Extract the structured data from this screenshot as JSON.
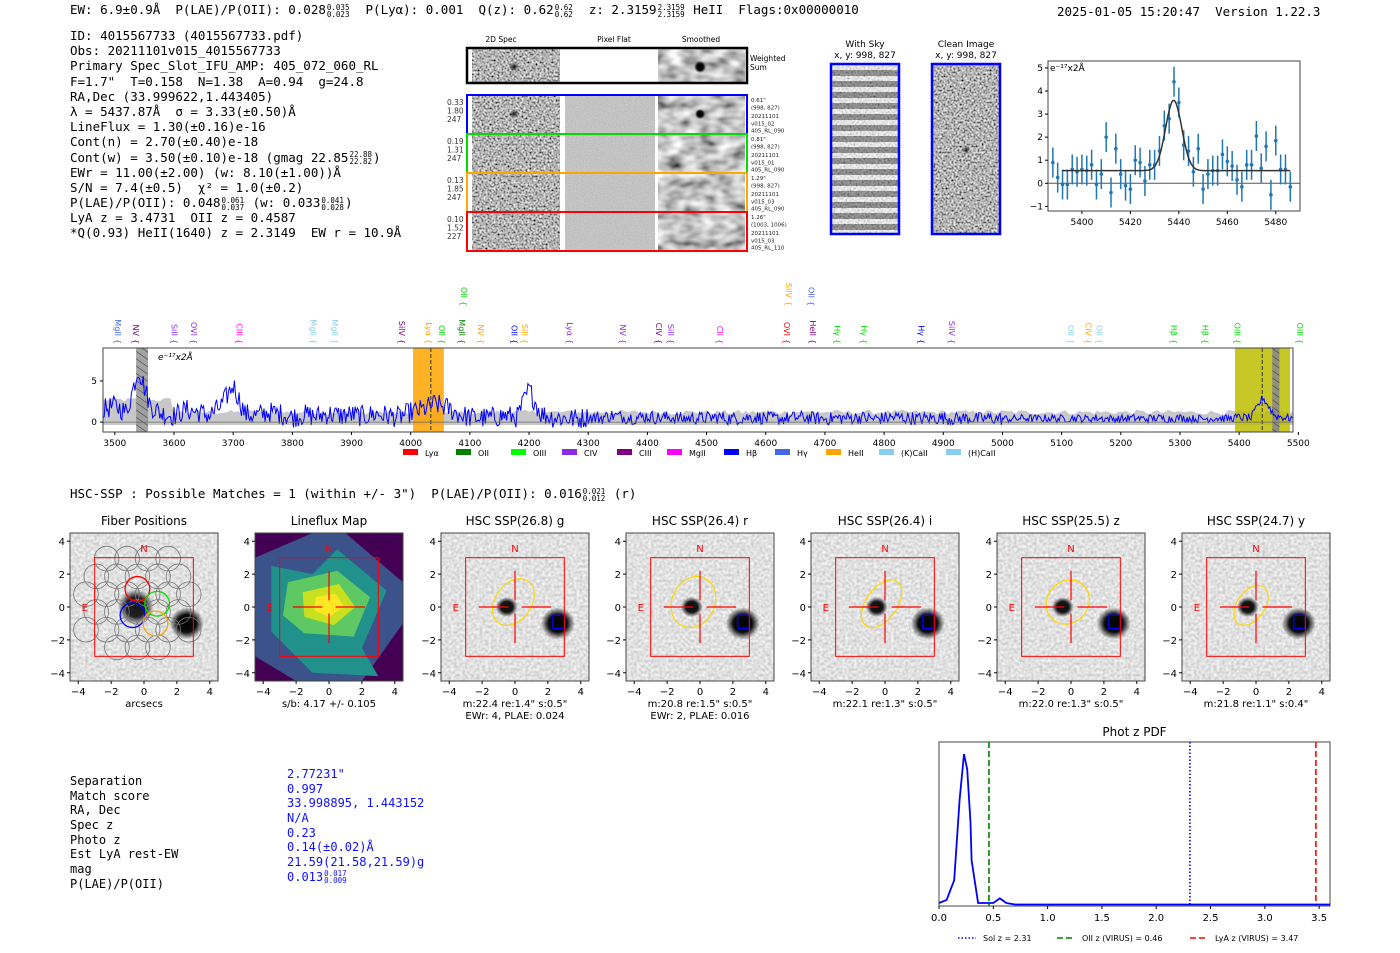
{
  "header": {
    "ew": "EW: 6.9±0.9Å",
    "plae": "P(LAE)/P(OII): 0.028",
    "plae_hi": "0.035",
    "plae_lo": "0.023",
    "plya": "P(Lyα): 0.001",
    "qz": "Q(z): 0.62",
    "qz_hi": "0.62",
    "qz_lo": "0.62",
    "z": "z: 2.3159",
    "z_hi": "2.3159",
    "z_lo": "2.3159",
    "z_line": "HeII",
    "flags": "Flags:0x00000010",
    "timestamp": "2025-01-05 15:20:47",
    "version": "Version 1.22.3"
  },
  "info": {
    "id": "ID: 4015567733 (4015567733.pdf)",
    "obs": "Obs: 20211101v015_4015567733",
    "primary": "Primary Spec_Slot_IFU_AMP: 405_072_060_RL",
    "params": "F=1.7\"  T=0.158  N=1.38  A=0.94  g=24.8",
    "radec": "RA,Dec (33.999622,1.443405)",
    "lambda": "λ = 5437.87Å  σ = 3.33(±0.50)Å",
    "lineflux": "LineFlux = 1.30(±0.16)e-16",
    "cont_n": "Cont(n) = 2.70(±0.40)e-18",
    "cont_w": "Cont(w) = 3.50(±0.10)e-18 (gmag 22.85",
    "cont_w_hi": "22.88",
    "cont_w_lo": "22.82",
    "cont_w_end": ")",
    "ewr": "EWr = 11.00(±2.00) (w: 8.10(±1.00))Å",
    "sn": "S/N = 7.4(±0.5)  χ² = 1.0(±0.2)",
    "plae": "P(LAE)/P(OII): 0.048",
    "plae_hi": "0.061",
    "plae_lo": "0.037",
    "plae_w": "(w: 0.033",
    "plae_w_hi": "0.041",
    "plae_w_lo": "0.028",
    "plae_w_end": ")",
    "lya_z": "LyA z = 3.4731  OII z = 0.4587",
    "heii": "*Q(0.93) HeII(1640) z = 2.3149  EW r = 10.9Å"
  },
  "cutouts": {
    "col_headers": [
      "2D Spec",
      "Pixel Flat",
      "Smoothed"
    ],
    "weighted_sum": [
      "Weighted",
      "Sum"
    ],
    "rows": [
      {
        "color": "#0000ff",
        "left": [
          "0.33",
          "1.80",
          "247"
        ],
        "right": [
          "0.61\"",
          "(998, 827)",
          "20211101",
          "v015_02",
          "405_RL_090"
        ]
      },
      {
        "color": "#00dd00",
        "left": [
          "0.19",
          "1.31",
          "247"
        ],
        "right": [
          "0.81\"",
          "(998, 827)",
          "20211101",
          "v015_01",
          "405_RL_090"
        ]
      },
      {
        "color": "#ffa500",
        "left": [
          "0.13",
          "1.85",
          "247"
        ],
        "right": [
          "1.29\"",
          "(998, 827)",
          "20211101",
          "v015_03",
          "405_RL_090"
        ]
      },
      {
        "color": "#ff0000",
        "left": [
          "0.10",
          "1.52",
          "227"
        ],
        "right": [
          "1.26\"",
          "(1003, 1006)",
          "20211101",
          "v015_03",
          "405_RL_110"
        ]
      }
    ],
    "with_sky": [
      "With Sky",
      "x, y: 998, 827"
    ],
    "clean": [
      "Clean Image",
      "x, y: 998, 827"
    ]
  },
  "chart_data": [
    {
      "type": "scatter",
      "name": "line-fit",
      "ylabel": "e⁻¹⁷x2Å",
      "xlim": [
        5386,
        5490
      ],
      "ylim": [
        -1.2,
        5.3
      ],
      "xticks": [
        5400,
        5420,
        5440,
        5460,
        5480
      ],
      "yticks": [
        -1,
        0,
        1,
        2,
        3,
        4,
        5
      ],
      "x": [
        5388,
        5390,
        5392,
        5394,
        5396,
        5398,
        5400,
        5402,
        5404,
        5406,
        5408,
        5410,
        5412,
        5414,
        5416,
        5418,
        5420,
        5422,
        5424,
        5426,
        5428,
        5430,
        5432,
        5434,
        5436,
        5438,
        5440,
        5442,
        5444,
        5446,
        5448,
        5450,
        5452,
        5454,
        5456,
        5458,
        5460,
        5462,
        5464,
        5466,
        5468,
        5470,
        5472,
        5474,
        5476,
        5478,
        5480,
        5482,
        5484,
        5486
      ],
      "y": [
        0.9,
        0.25,
        -0.05,
        -0.05,
        0.6,
        0.5,
        0.6,
        0.55,
        0.8,
        -0.05,
        0.4,
        2.0,
        -0.4,
        1.5,
        0.4,
        -0.1,
        -0.25,
        1.0,
        0.9,
        0.1,
        0.8,
        0.8,
        1.4,
        2.5,
        2.8,
        4.4,
        3.5,
        1.65,
        1.4,
        0.5,
        1.5,
        -0.25,
        0.4,
        0.55,
        0.55,
        1.25,
        0.95,
        0.75,
        0.15,
        -0.15,
        0.8,
        0.8,
        2.05,
        0.65,
        1.6,
        -0.5,
        1.85,
        0.6,
        0.6,
        -0.15
      ],
      "yerr": 0.65,
      "fit": {
        "continuum": 0.55,
        "amplitude": 3.05,
        "center": 5437.87,
        "sigma": 3.33,
        "range": [
          5392,
          5486
        ]
      }
    },
    {
      "type": "line",
      "name": "full-spectrum",
      "ylabel": "e⁻¹⁷x2Å",
      "xlim": [
        3480,
        5491
      ],
      "ylim": [
        -1.2,
        9.0
      ],
      "xticks": [
        3500,
        3600,
        3700,
        3800,
        3900,
        4000,
        4100,
        4200,
        4300,
        4400,
        4500,
        4600,
        4700,
        4800,
        4900,
        5000,
        5100,
        5200,
        5300,
        5400,
        5500
      ],
      "yticks": [
        0,
        5
      ],
      "x_start": 3480,
      "x_step": 20,
      "values": [
        1.5,
        2.0,
        1.2,
        6.5,
        2.0,
        1.0,
        0.8,
        1.5,
        1.2,
        0.8,
        2.0,
        4.5,
        1.0,
        0.8,
        1.2,
        1.0,
        0.6,
        0.9,
        0.7,
        1.0,
        0.8,
        0.9,
        0.7,
        1.0,
        0.8,
        0.6,
        1.2,
        1.5,
        2.2,
        1.8,
        1.0,
        0.6,
        0.5,
        0.6,
        0.8,
        0.6,
        4.0,
        1.0,
        0.6,
        0.5,
        0.4,
        0.6,
        0.5,
        0.8,
        0.6,
        0.5,
        0.7,
        0.5,
        0.6,
        0.4,
        0.5,
        0.5,
        0.6,
        0.4,
        0.5,
        0.6,
        0.5,
        0.4,
        0.5,
        0.6,
        0.5,
        0.4,
        0.5,
        0.5,
        0.6,
        0.4,
        0.5,
        0.6,
        0.5,
        0.4,
        0.5,
        0.5,
        0.4,
        0.5,
        0.4,
        0.5,
        0.4,
        0.4,
        0.5,
        0.4,
        0.5,
        0.4,
        0.5,
        0.4,
        0.5,
        0.4,
        0.4,
        0.5,
        0.4,
        0.5,
        0.4,
        0.5,
        0.4,
        0.4,
        0.5,
        0.4,
        0.6,
        0.5,
        3.0,
        0.8,
        0.5
      ],
      "bands": [
        {
          "from": 3536,
          "to": 3556,
          "color": "#999999",
          "hatch": true
        },
        {
          "from": 4004,
          "to": 4056,
          "color": "#ffa500",
          "marker": 4034
        },
        {
          "from": 5393,
          "to": 5486,
          "color": "#bdbd00",
          "marker": 5439
        },
        {
          "from": 5456,
          "to": 5468,
          "color": "#888888",
          "hatch": true
        }
      ],
      "line_labels": [
        {
          "label": "MgII",
          "wave": 3505,
          "color": "#4169e1"
        },
        {
          "label": "NV",
          "wave": 3536,
          "color": "#800080"
        },
        {
          "label": "SiII",
          "wave": 3601,
          "color": "#8a2be2"
        },
        {
          "label": "OVI",
          "wave": 3634,
          "color": "#8a2be2"
        },
        {
          "label": "CIII",
          "wave": 3711,
          "color": "#ff00ff"
        },
        {
          "label": "MgII",
          "wave": 3836,
          "color": "#87ceeb"
        },
        {
          "label": "MgII",
          "wave": 3872,
          "color": "#87ceeb"
        },
        {
          "label": "SiIV",
          "wave": 3985,
          "color": "#800080"
        },
        {
          "label": "Lyα",
          "wave": 4031,
          "color": "#ffa500"
        },
        {
          "label": "OII",
          "wave": 4053,
          "color": "#00dd00"
        },
        {
          "label": "MgII",
          "wave": 4087,
          "color": "#008000"
        },
        {
          "label": "NV",
          "wave": 4119,
          "color": "#ffa500"
        },
        {
          "label": "OII",
          "wave": 4175,
          "color": "#0000ff"
        },
        {
          "label": "SiII",
          "wave": 4193,
          "color": "#ffa500"
        },
        {
          "label": "Lyα",
          "wave": 4269,
          "color": "#8a2be2"
        },
        {
          "label": "NV",
          "wave": 4359,
          "color": "#8a2be2"
        },
        {
          "label": "CIV",
          "wave": 4420,
          "color": "#800080"
        },
        {
          "label": "SiII",
          "wave": 4440,
          "color": "#8a2be2"
        },
        {
          "label": "CII",
          "wave": 4523,
          "color": "#ff00ff"
        },
        {
          "label": "OVI",
          "wave": 4636,
          "color": "#ff0000"
        },
        {
          "label": "HeII",
          "wave": 4680,
          "color": "#800080"
        },
        {
          "label": "Hγ",
          "wave": 4721,
          "color": "#00dd00"
        },
        {
          "label": "Hγ",
          "wave": 4766,
          "color": "#00dd00"
        },
        {
          "label": "Hγ",
          "wave": 4863,
          "color": "#0000ff"
        },
        {
          "label": "SiIV",
          "wave": 4915,
          "color": "#8a2be2"
        },
        {
          "label": "OII",
          "wave": 5116,
          "color": "#87ceeb"
        },
        {
          "label": "CIV",
          "wave": 5145,
          "color": "#ffa500"
        },
        {
          "label": "OII",
          "wave": 5164,
          "color": "#87ceeb"
        },
        {
          "label": "Hβ",
          "wave": 5290,
          "color": "#00dd00"
        },
        {
          "label": "Hβ",
          "wave": 5343,
          "color": "#00dd00"
        },
        {
          "label": "OIII",
          "wave": 5397,
          "color": "#00dd00"
        },
        {
          "label": "OIII",
          "wave": 5503,
          "color": "#00dd00"
        }
      ],
      "upper_labels": [
        {
          "label": "OII",
          "wave": 4090,
          "color": "#00dd00"
        },
        {
          "label": "SiIV",
          "wave": 4639,
          "color": "#ffa500"
        },
        {
          "label": "OII",
          "wave": 4677,
          "color": "#4169e1"
        }
      ],
      "legend": [
        {
          "label": "Lyα",
          "color": "#ff0000"
        },
        {
          "label": "OII",
          "color": "#008000"
        },
        {
          "label": "OIII",
          "color": "#00ff00"
        },
        {
          "label": "CIV",
          "color": "#8a2be2"
        },
        {
          "label": "CIII",
          "color": "#800080"
        },
        {
          "label": "MgII",
          "color": "#ff00ff"
        },
        {
          "label": "Hβ",
          "color": "#0000ff"
        },
        {
          "label": "Hγ",
          "color": "#4169e1"
        },
        {
          "label": "HeII",
          "color": "#ffa500"
        },
        {
          "label": "(K)CaII",
          "color": "#87ceeb"
        },
        {
          "label": "(H)CaII",
          "color": "#87ceeb"
        }
      ]
    },
    {
      "type": "line",
      "name": "phot-z-pdf",
      "title": "Phot z PDF",
      "xlim": [
        0,
        3.6
      ],
      "ylim": [
        0,
        1.08
      ],
      "xticks": [
        "0.0",
        "0.5",
        "1.0",
        "1.5",
        "2.0",
        "2.5",
        "3.0",
        "3.5"
      ],
      "x": [
        0,
        0.07,
        0.14,
        0.19,
        0.23,
        0.26,
        0.29,
        0.3,
        0.36,
        0.45,
        0.5,
        0.56,
        0.62,
        0.7,
        3.6
      ],
      "y": [
        0.02,
        0.04,
        0.17,
        0.7,
        1.0,
        0.9,
        0.55,
        0.3,
        0.02,
        0.02,
        0.02,
        0.05,
        0.02,
        0.01,
        0.01
      ],
      "vlines": [
        {
          "x": 2.31,
          "color": "#0000ff",
          "style": "dotted",
          "label": "Sol z = 2.31"
        },
        {
          "x": 0.46,
          "color": "#008000",
          "style": "dashed",
          "label": "OII z (VIRUS) = 0.46"
        },
        {
          "x": 3.47,
          "color": "#ff0000",
          "style": "dashed",
          "label": "LyA z (VIRUS) = 3.47"
        }
      ]
    }
  ],
  "hsc": {
    "title": "HSC-SSP : Possible Matches = 1 (within +/- 3\")  P(LAE)/P(OII): 0.016",
    "plae_hi": "0.021",
    "plae_lo": "0.012",
    "suffix": "(r)",
    "ticks": [
      "−4",
      "−2",
      "0",
      "2",
      "4"
    ],
    "north": "N",
    "east": "E",
    "panels": [
      {
        "title": "Fiber Positions",
        "caption": [
          "arcsecs"
        ]
      },
      {
        "title": "Lineflux Map",
        "caption": [
          "s/b: 4.17 +/- 0.105"
        ]
      },
      {
        "title": "HSC SSP(26.8) g",
        "caption": [
          "m:22.4  re:1.4\"  s:0.5\"",
          "EWr: 4, PLAE: 0.024"
        ]
      },
      {
        "title": "HSC SSP(26.4) r",
        "caption": [
          "m:20.8  re:1.5\"  s:0.5\"",
          "EWr: 2, PLAE: 0.016"
        ]
      },
      {
        "title": "HSC SSP(26.4) i",
        "caption": [
          "m:22.1  re:1.3\"  s:0.5\""
        ]
      },
      {
        "title": "HSC SSP(25.5) z",
        "caption": [
          "m:22.0  re:1.3\"  s:0.5\""
        ]
      },
      {
        "title": "HSC SSP(24.7) y",
        "caption": [
          "m:21.8  re:1.1\"  s:0.4\""
        ]
      }
    ]
  },
  "match": {
    "labels": [
      "Separation",
      "Match score",
      "RA, Dec",
      "Spec z",
      "Photo z",
      "Est LyA rest-EW",
      "mag",
      "P(LAE)/P(OII)"
    ],
    "values": [
      "2.77231\"",
      "0.997",
      "33.998895, 1.443152",
      "N/A",
      "0.23",
      "0.14(±0.02)Å",
      "21.59(21.58,21.59)g",
      "0.013"
    ],
    "plae_hi": "0.017",
    "plae_lo": "0.009"
  }
}
